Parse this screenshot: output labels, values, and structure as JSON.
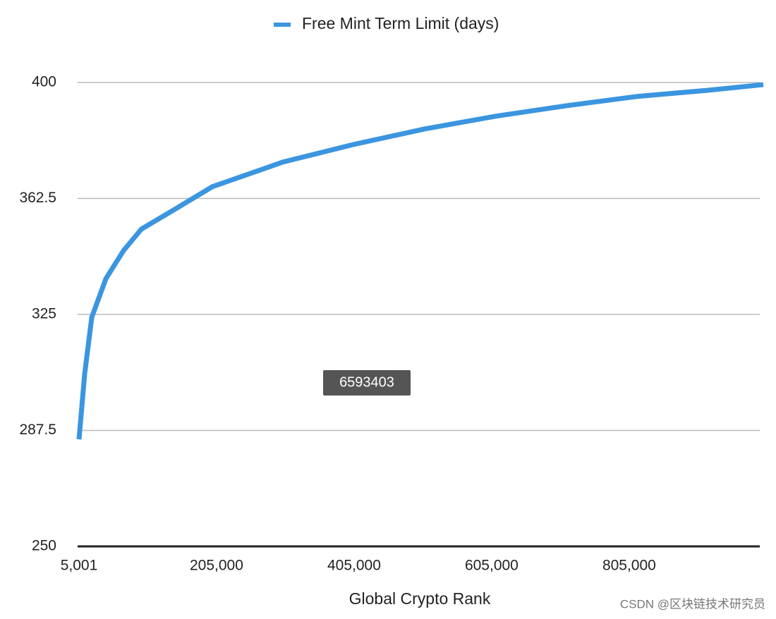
{
  "chart_data": {
    "type": "line",
    "xlabel": "Global Crypto Rank",
    "x": [
      5001,
      13250,
      23560,
      44180,
      69950,
      95730,
      147300,
      198800,
      301900,
      405000,
      508000,
      611000,
      714000,
      817000,
      920000,
      1000000
    ],
    "series": [
      {
        "name": "Free Mint Term Limit (days)",
        "color": "#3b95e0",
        "values": [
          284.6,
          305.8,
          324.1,
          336.6,
          345.7,
          352.6,
          359.4,
          366.3,
          374.3,
          380,
          385,
          389.1,
          392.5,
          395.5,
          397.5,
          399.3
        ]
      }
    ],
    "xlim": [
      5001,
      1000001
    ],
    "xticks": [
      {
        "value": 5001,
        "label": "5,001"
      },
      {
        "value": 205001,
        "label": "205,000"
      },
      {
        "value": 405001,
        "label": "405,000"
      },
      {
        "value": 605001,
        "label": "605,000"
      },
      {
        "value": 805001,
        "label": "805,000"
      }
    ],
    "ylim": [
      250,
      400
    ],
    "yticks": [
      250,
      287.5,
      325,
      362.5,
      400
    ],
    "grid": true,
    "legend": "top"
  },
  "tooltip": "6593403",
  "watermark": "CSDN @区块链技术研究员"
}
